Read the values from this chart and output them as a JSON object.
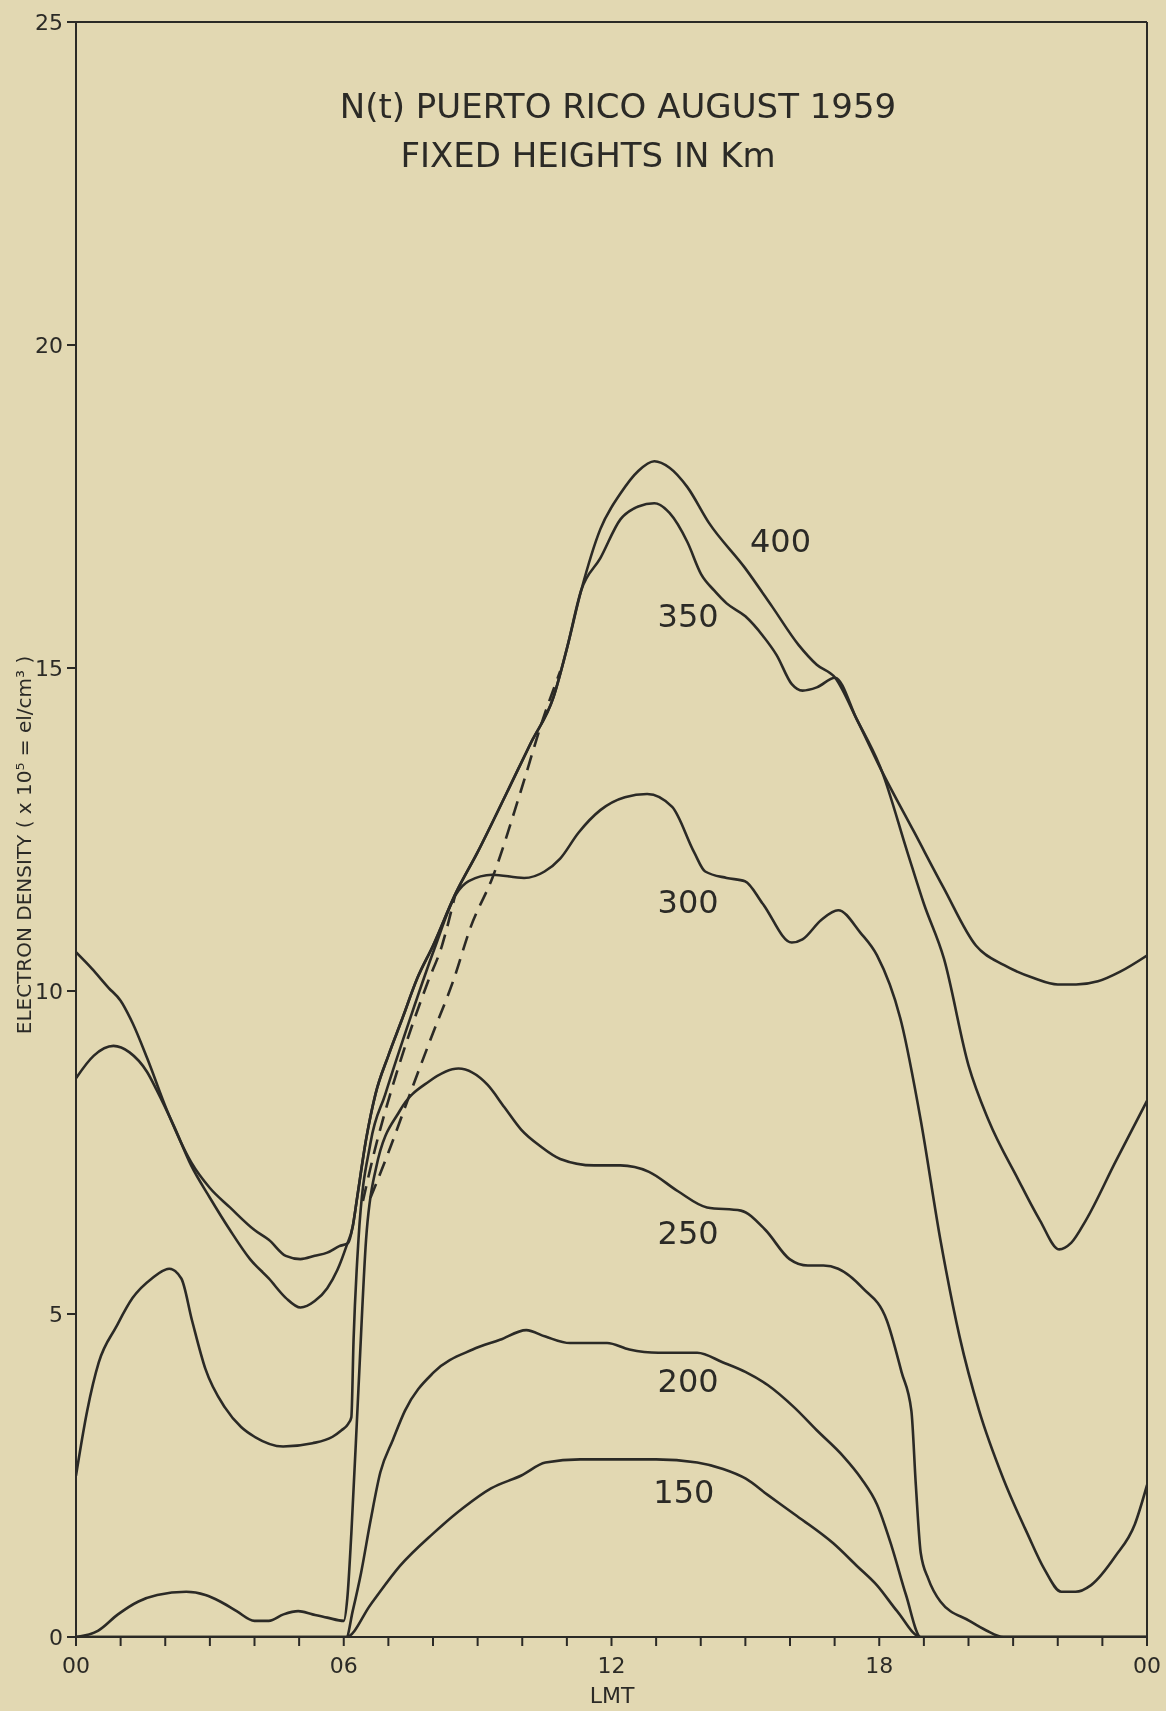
{
  "chart_data": {
    "type": "line",
    "title": "N(t) PUERTO RICO AUGUST 1959",
    "subtitle": "FIXED HEIGHTS IN Km",
    "xlabel": "LMT",
    "ylabel": "ELECTRON DENSITY ( x 10⁵ = el/cm³ )",
    "xlim": [
      0,
      24
    ],
    "xticks": [
      {
        "value": 0,
        "label": "00"
      },
      {
        "value": 1,
        "label": null
      },
      {
        "value": 2,
        "label": null
      },
      {
        "value": 3,
        "label": null
      },
      {
        "value": 4,
        "label": null
      },
      {
        "value": 5,
        "label": null
      },
      {
        "value": 6,
        "label": "06"
      },
      {
        "value": 7,
        "label": null
      },
      {
        "value": 8,
        "label": null
      },
      {
        "value": 9,
        "label": null
      },
      {
        "value": 10,
        "label": null
      },
      {
        "value": 11,
        "label": null
      },
      12,
      {
        "value": 13,
        "label": null
      },
      {
        "value": 14,
        "label": null
      },
      {
        "value": 15,
        "label": null
      },
      {
        "value": 16,
        "label": null
      },
      {
        "value": 17,
        "label": null
      },
      18,
      {
        "value": 19,
        "label": null
      },
      {
        "value": 20,
        "label": null
      },
      {
        "value": 21,
        "label": null
      },
      {
        "value": 22,
        "label": null
      },
      {
        "value": 23,
        "label": null
      },
      {
        "value": 24,
        "label": "00"
      }
    ],
    "ylim": [
      0,
      25
    ],
    "yticks": [
      0,
      5,
      10,
      15,
      20,
      25
    ],
    "line_style": "solid",
    "series": [
      {
        "name": "400",
        "color": "#2b2a26",
        "x": [
          0,
          0.35,
          0.73,
          1,
          1.27,
          1.6,
          2.04,
          2.58,
          3,
          3.45,
          4,
          4.32,
          4.7,
          5.03,
          5.35,
          5.63,
          5.9,
          6.1,
          6.2,
          6.3,
          6.5,
          6.71,
          7,
          7.3,
          7.65,
          8,
          8.5,
          9,
          9.64,
          10.2,
          10.7,
          11,
          11.32,
          11.75,
          12.2,
          12.6,
          12.96,
          13.3,
          13.7,
          14.18,
          14.99,
          15.6,
          16.2,
          16.6,
          17.01,
          17.5,
          18.06,
          18.79,
          19.44,
          20.17,
          20.8,
          21.46,
          22,
          22.41,
          22.9,
          23.4,
          24
        ],
        "values": [
          10.6,
          10.35,
          10.05,
          9.85,
          9.5,
          8.95,
          8.15,
          7.35,
          6.95,
          6.65,
          6.3,
          6.15,
          5.9,
          5.85,
          5.9,
          5.95,
          6.05,
          6.1,
          6.35,
          6.8,
          7.7,
          8.4,
          9,
          9.55,
          10.2,
          10.7,
          11.5,
          12.15,
          13.05,
          13.85,
          14.55,
          15.3,
          16.2,
          17.15,
          17.7,
          18.05,
          18.2,
          18.1,
          17.8,
          17.25,
          16.55,
          15.95,
          15.35,
          15.05,
          14.85,
          14.2,
          13.4,
          12.45,
          11.6,
          10.7,
          10.4,
          10.2,
          10.1,
          10.1,
          10.15,
          10.3,
          10.55
        ]
      },
      {
        "name": "350",
        "color": "#2b2a26",
        "x": [
          0,
          0.4,
          0.84,
          1.2,
          1.59,
          1.82,
          2.2,
          2.58,
          3,
          3.45,
          3.9,
          4.32,
          4.7,
          5.03,
          5.35,
          5.63,
          5.9,
          6.06,
          6.2,
          6.3,
          6.5,
          6.71,
          7,
          7.3,
          7.65,
          8,
          8.5,
          9,
          9.64,
          10.2,
          10.7,
          11,
          11.32,
          11.75,
          12.2,
          12.6,
          12.96,
          13.3,
          13.7,
          14.01,
          14.3,
          14.58,
          15,
          15.39,
          15.7,
          16.04,
          16.28,
          16.6,
          17.01,
          17.5,
          18.06,
          18.63,
          19,
          19.45,
          20,
          20.45,
          21.1,
          21.6,
          22.03,
          22.3,
          22.63,
          23.29,
          24
        ],
        "values": [
          8.65,
          9,
          9.15,
          9.05,
          8.75,
          8.45,
          7.9,
          7.3,
          6.8,
          6.3,
          5.85,
          5.55,
          5.25,
          5.1,
          5.2,
          5.4,
          5.75,
          6.05,
          6.35,
          6.8,
          7.7,
          8.4,
          9,
          9.55,
          10.2,
          10.7,
          11.5,
          12.15,
          13.05,
          13.85,
          14.55,
          15.3,
          16.2,
          16.7,
          17.3,
          17.5,
          17.55,
          17.4,
          16.95,
          16.45,
          16.2,
          16,
          15.8,
          15.5,
          15.2,
          14.75,
          14.65,
          14.7,
          14.85,
          14.2,
          13.4,
          12.15,
          11.35,
          10.5,
          8.85,
          8,
          7.1,
          6.45,
          6,
          6.1,
          6.45,
          7.35,
          8.3
        ]
      },
      {
        "name": "300",
        "color": "#2b2a26",
        "x": [
          0,
          0.25,
          0.51,
          0.9,
          1.27,
          1.7,
          2.09,
          2.36,
          2.6,
          2.9,
          3.34,
          3.7,
          4,
          4.64,
          5.3,
          5.75,
          5.95,
          6.1,
          6.17,
          6.22,
          6.33,
          6.6,
          6.93,
          7.5,
          8.03,
          8.52,
          8.8,
          9.33,
          10.04,
          10.5,
          10.85,
          11.26,
          11.75,
          12.3,
          12.8,
          13.36,
          13.85,
          14.1,
          14.58,
          14.99,
          15.39,
          16.04,
          16.28,
          16.7,
          17.08,
          17.58,
          17.95,
          18.5,
          18.93,
          19.37,
          19.8,
          20.24,
          20.78,
          21.32,
          21.7,
          22.08,
          22.4,
          22.74,
          23.29,
          23.73,
          24
        ],
        "values": [
          2.5,
          3.5,
          4.25,
          4.8,
          5.25,
          5.55,
          5.7,
          5.55,
          4.9,
          4.15,
          3.55,
          3.25,
          3.1,
          2.95,
          3,
          3.1,
          3.2,
          3.3,
          3.4,
          4.6,
          6.15,
          7.65,
          8.4,
          9.6,
          10.65,
          11.5,
          11.7,
          11.8,
          11.75,
          11.85,
          12.05,
          12.45,
          12.8,
          13,
          13.05,
          12.85,
          12.15,
          11.85,
          11.75,
          11.7,
          11.35,
          10.75,
          10.8,
          11.1,
          11.25,
          10.9,
          10.55,
          9.5,
          8,
          6.15,
          4.65,
          3.5,
          2.45,
          1.6,
          1.05,
          0.7,
          0.7,
          0.8,
          1.25,
          1.75,
          2.35
        ]
      },
      {
        "name": "250",
        "color": "#2b2a26",
        "x": [
          0,
          0.5,
          0.94,
          1.4,
          1.82,
          2.47,
          2.9,
          3.23,
          3.6,
          4,
          4.32,
          4.65,
          4.98,
          5.3,
          5.63,
          6,
          6.08,
          6.17,
          6.33,
          6.5,
          6.72,
          7.26,
          7.91,
          8.57,
          9.22,
          9.6,
          9.98,
          10.4,
          10.85,
          11.61,
          12.2,
          12.84,
          13.49,
          14.14,
          14.9,
          15.45,
          15.99,
          16.4,
          16.75,
          17.08,
          17.63,
          18.17,
          18.5,
          18.72,
          18.82,
          18.93,
          19.1,
          19.37,
          20.02,
          20.4,
          20.78,
          24
        ],
        "values": [
          0,
          0.1,
          0.35,
          0.55,
          0.65,
          0.7,
          0.65,
          0.55,
          0.4,
          0.25,
          0.25,
          0.35,
          0.4,
          0.35,
          0.3,
          0.25,
          0.6,
          1.6,
          3.85,
          6.15,
          7.25,
          8.15,
          8.6,
          8.8,
          8.55,
          8.2,
          7.85,
          7.6,
          7.4,
          7.3,
          7.3,
          7.2,
          6.9,
          6.65,
          6.6,
          6.3,
          5.85,
          5.75,
          5.75,
          5.7,
          5.4,
          4.9,
          4.1,
          3.5,
          2.35,
          1.3,
          0.9,
          0.55,
          0.25,
          0.1,
          0,
          0
        ]
      },
      {
        "name": "200",
        "color": "#2b2a26",
        "x": [
          0,
          6.06,
          6.2,
          6.39,
          6.6,
          6.82,
          7.1,
          7.37,
          8.02,
          8.89,
          9.5,
          10.09,
          10.52,
          11.07,
          11.9,
          12.4,
          13.05,
          13.92,
          14.5,
          15.01,
          15.5,
          16.1,
          16.6,
          17.19,
          17.6,
          17.95,
          18.28,
          18.6,
          18.93,
          24
        ],
        "values": [
          0,
          0,
          0.4,
          1,
          1.8,
          2.55,
          3.05,
          3.5,
          4.1,
          4.45,
          4.6,
          4.75,
          4.65,
          4.55,
          4.55,
          4.45,
          4.4,
          4.4,
          4.25,
          4.1,
          3.9,
          3.55,
          3.2,
          2.8,
          2.45,
          2.05,
          1.4,
          0.65,
          0,
          0
        ]
      },
      {
        "name": "150",
        "color": "#2b2a26",
        "x": [
          0,
          6.06,
          6.6,
          7.26,
          8,
          8.68,
          9.3,
          9.98,
          10.52,
          11.3,
          12.15,
          13,
          13.92,
          14.5,
          15.01,
          15.5,
          16.1,
          16.97,
          17.5,
          17.95,
          18.4,
          18.93,
          24
        ],
        "values": [
          0,
          0,
          0.5,
          1.1,
          1.6,
          2,
          2.3,
          2.5,
          2.7,
          2.75,
          2.75,
          2.75,
          2.7,
          2.6,
          2.45,
          2.2,
          1.9,
          1.45,
          1.1,
          0.8,
          0.4,
          0,
          0
        ]
      },
      {
        "color": "#2b2a26",
        "line_style": "dashed",
        "x": [
          6.43,
          6.7,
          7.04,
          7.5,
          7.89,
          8.2,
          8.5
        ],
        "values": [
          6.75,
          7.55,
          8.4,
          9.4,
          10.15,
          10.7,
          11.5
        ]
      },
      {
        "color": "#2b2a26",
        "line_style": "dashed",
        "x": [
          6.6,
          7,
          7.48,
          8,
          8.45,
          8.85,
          9.33,
          9.97,
          10.46,
          10.85
        ],
        "values": [
          6.8,
          7.5,
          8.4,
          9.35,
          10.15,
          11,
          11.75,
          13.1,
          14.2,
          14.95
        ]
      }
    ]
  }
}
